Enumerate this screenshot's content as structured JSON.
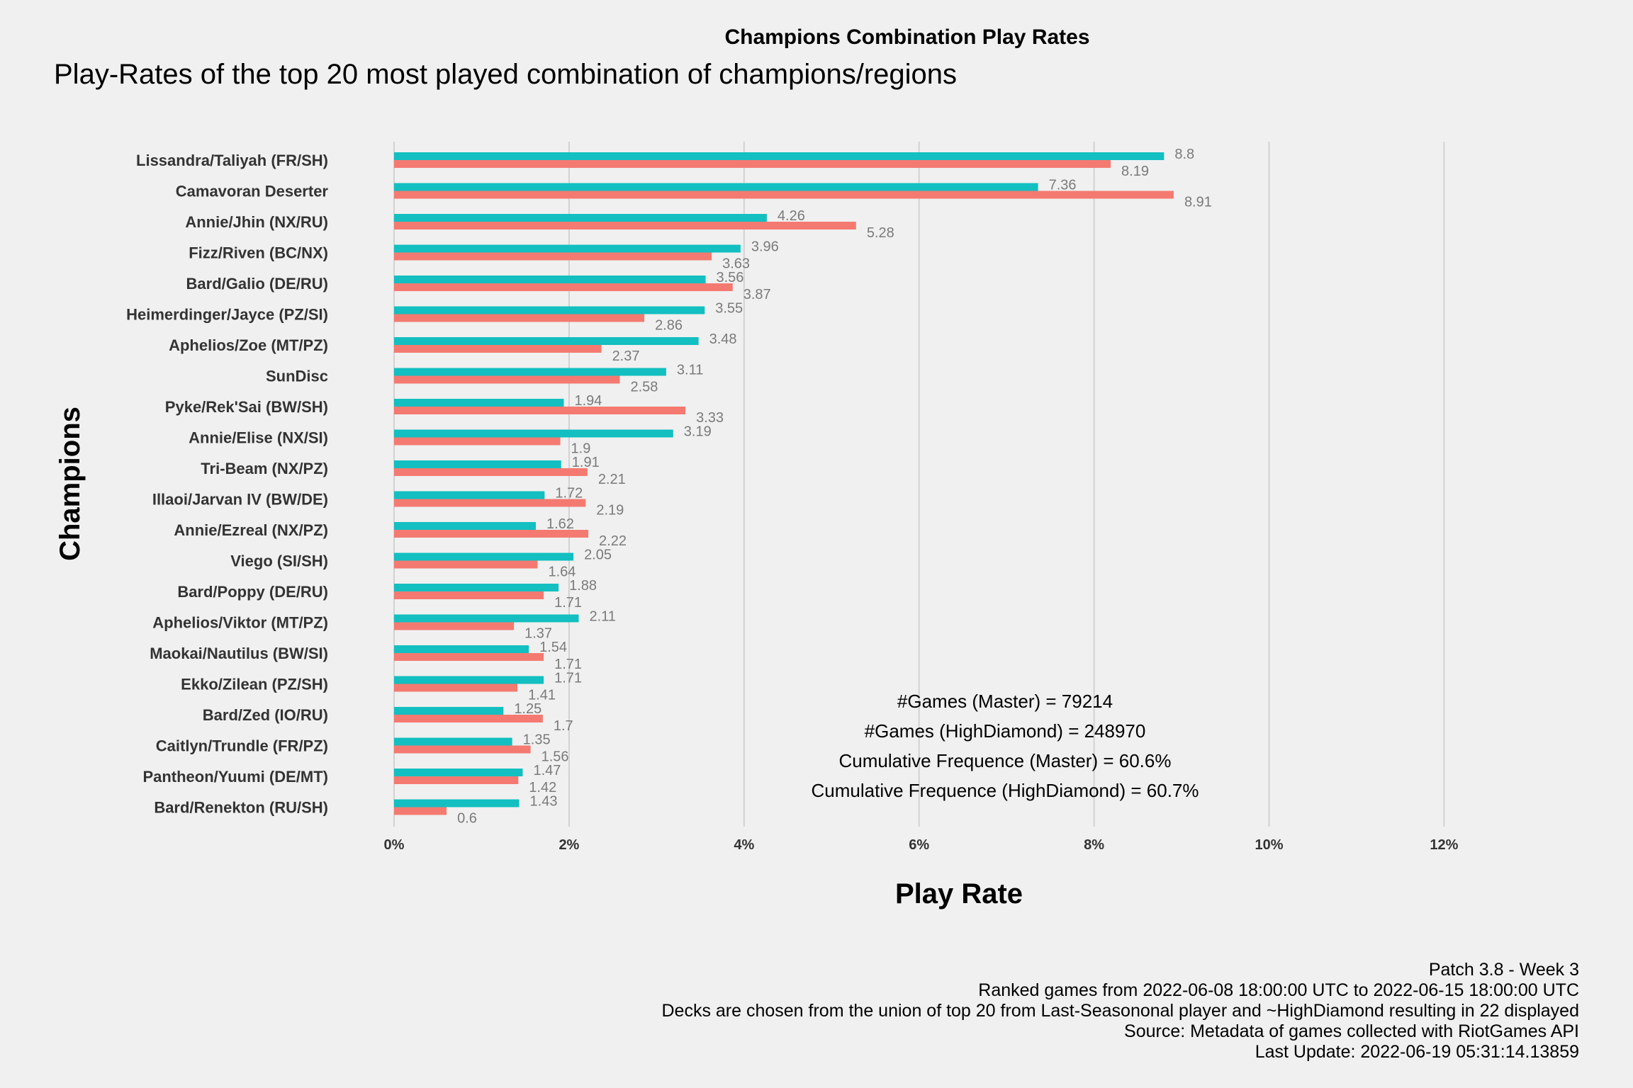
{
  "header": {
    "title": "Champions Combination Play Rates",
    "subtitle": "Play-Rates of the top 20 most played combination of champions/regions"
  },
  "annotations": [
    "#Games (Master) = 79214",
    "#Games (HighDiamond) = 248970",
    "Cumulative Frequence (Master) = 60.6%",
    "Cumulative Frequence (HighDiamond) = 60.7%"
  ],
  "caption": {
    "lines": [
      "Patch 3.8 - Week 3",
      "Ranked games from 2022-06-08 18:00:00 UTC to 2022-06-15 18:00:00 UTC",
      "Decks are chosen from the union of top 20 from Last-Seasononal player and ~HighDiamond resulting in 22 displayed",
      "Source: Metadata of games collected with RiotGames API",
      "Last Update: 2022-06-19 05:31:14.13859"
    ]
  },
  "chart_data": {
    "type": "bar",
    "orientation": "horizontal",
    "title": "Champions Combination Play Rates",
    "subtitle": "Play-Rates of the top 20 most played combination of champions/regions",
    "xlabel": "Play Rate",
    "ylabel": "Champions",
    "xlim": [
      0,
      12
    ],
    "xticks": [
      0,
      2,
      4,
      6,
      8,
      10,
      12
    ],
    "xtick_labels": [
      "0%",
      "2%",
      "4%",
      "6%",
      "8%",
      "10%",
      "12%"
    ],
    "grid": "vertical major",
    "legend": "none",
    "categories": [
      "Lissandra/Taliyah (FR/SH)",
      "Camavoran Deserter",
      "Annie/Jhin (NX/RU)",
      "Fizz/Riven (BC/NX)",
      "Bard/Galio (DE/RU)",
      "Heimerdinger/Jayce (PZ/SI)",
      "Aphelios/Zoe (MT/PZ)",
      "SunDisc",
      "Pyke/Rek'Sai (BW/SH)",
      "Annie/Elise (NX/SI)",
      "Tri-Beam (NX/PZ)",
      "Illaoi/Jarvan IV (BW/DE)",
      "Annie/Ezreal (NX/PZ)",
      "Viego (SI/SH)",
      "Bard/Poppy (DE/RU)",
      "Aphelios/Viktor (MT/PZ)",
      "Maokai/Nautilus (BW/SI)",
      "Ekko/Zilean (PZ/SH)",
      "Bard/Zed (IO/RU)",
      "Caitlyn/Trundle (FR/PZ)",
      "Pantheon/Yuumi (DE/MT)",
      "Bard/Renekton (RU/SH)"
    ],
    "series": [
      {
        "color": "#13bfc0",
        "values": [
          8.8,
          7.36,
          4.26,
          3.96,
          3.56,
          3.55,
          3.48,
          3.11,
          1.94,
          3.19,
          1.91,
          1.72,
          1.62,
          2.05,
          1.88,
          2.11,
          1.54,
          1.71,
          1.25,
          1.35,
          1.47,
          1.43
        ],
        "value_labels": [
          "8.8",
          "7.36",
          "4.26",
          "3.96",
          "3.56",
          "3.55",
          "3.48",
          "3.11",
          "1.94",
          "3.19",
          "1.91",
          "1.72",
          "1.62",
          "2.05",
          "1.88",
          "2.11",
          "1.54",
          "1.71",
          "1.25",
          "1.35",
          "1.47",
          "1.43"
        ]
      },
      {
        "color": "#f47a71",
        "values": [
          8.19,
          8.91,
          5.28,
          3.63,
          3.87,
          2.86,
          2.37,
          2.58,
          3.33,
          1.9,
          2.21,
          2.19,
          2.22,
          1.64,
          1.71,
          1.37,
          1.71,
          1.41,
          1.7,
          1.56,
          1.42,
          0.6
        ],
        "value_labels": [
          "8.19",
          "8.91",
          "5.28",
          "3.63",
          "3.87",
          "2.86",
          "2.37",
          "2.58",
          "3.33",
          "1.9",
          "2.21",
          "2.19",
          "2.22",
          "1.64",
          "1.71",
          "1.37",
          "1.71",
          "1.41",
          "1.7",
          "1.56",
          "1.42",
          "0.6"
        ]
      }
    ]
  }
}
